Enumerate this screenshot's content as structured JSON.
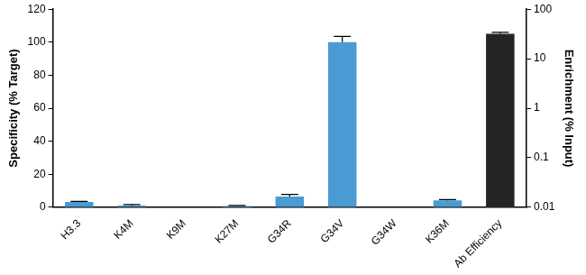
{
  "chart_data": {
    "type": "bar",
    "y_label": "Specificity (% Target)",
    "y2_label": "Enrichment (% Input)",
    "categories": [
      "H3.3",
      "K4M",
      "K9M",
      "K27M",
      "G34R",
      "G34V",
      "G34W",
      "K36M",
      "Ab Efficiency"
    ],
    "series": [
      {
        "color": "#4a9bd4",
        "axis": "y",
        "values": [
          3.2,
          1.0,
          0,
          0.8,
          6.5,
          100,
          0,
          4.2,
          null
        ],
        "errors": [
          0.4,
          0.7,
          0,
          0.3,
          1.3,
          3.5,
          0,
          0.5,
          null
        ]
      },
      {
        "color": "#222522",
        "axis": "y2",
        "values": [
          null,
          null,
          null,
          null,
          null,
          null,
          null,
          null,
          32
        ],
        "errors": [
          null,
          null,
          null,
          null,
          null,
          null,
          null,
          null,
          2
        ]
      }
    ],
    "ylim": [
      0,
      120
    ],
    "yticks": [
      0,
      20,
      40,
      60,
      80,
      100,
      120
    ],
    "y2lim": [
      0.01,
      100
    ],
    "y2ticks": [
      0.01,
      0.1,
      1,
      10,
      100
    ],
    "log": "y2",
    "grid": false
  }
}
